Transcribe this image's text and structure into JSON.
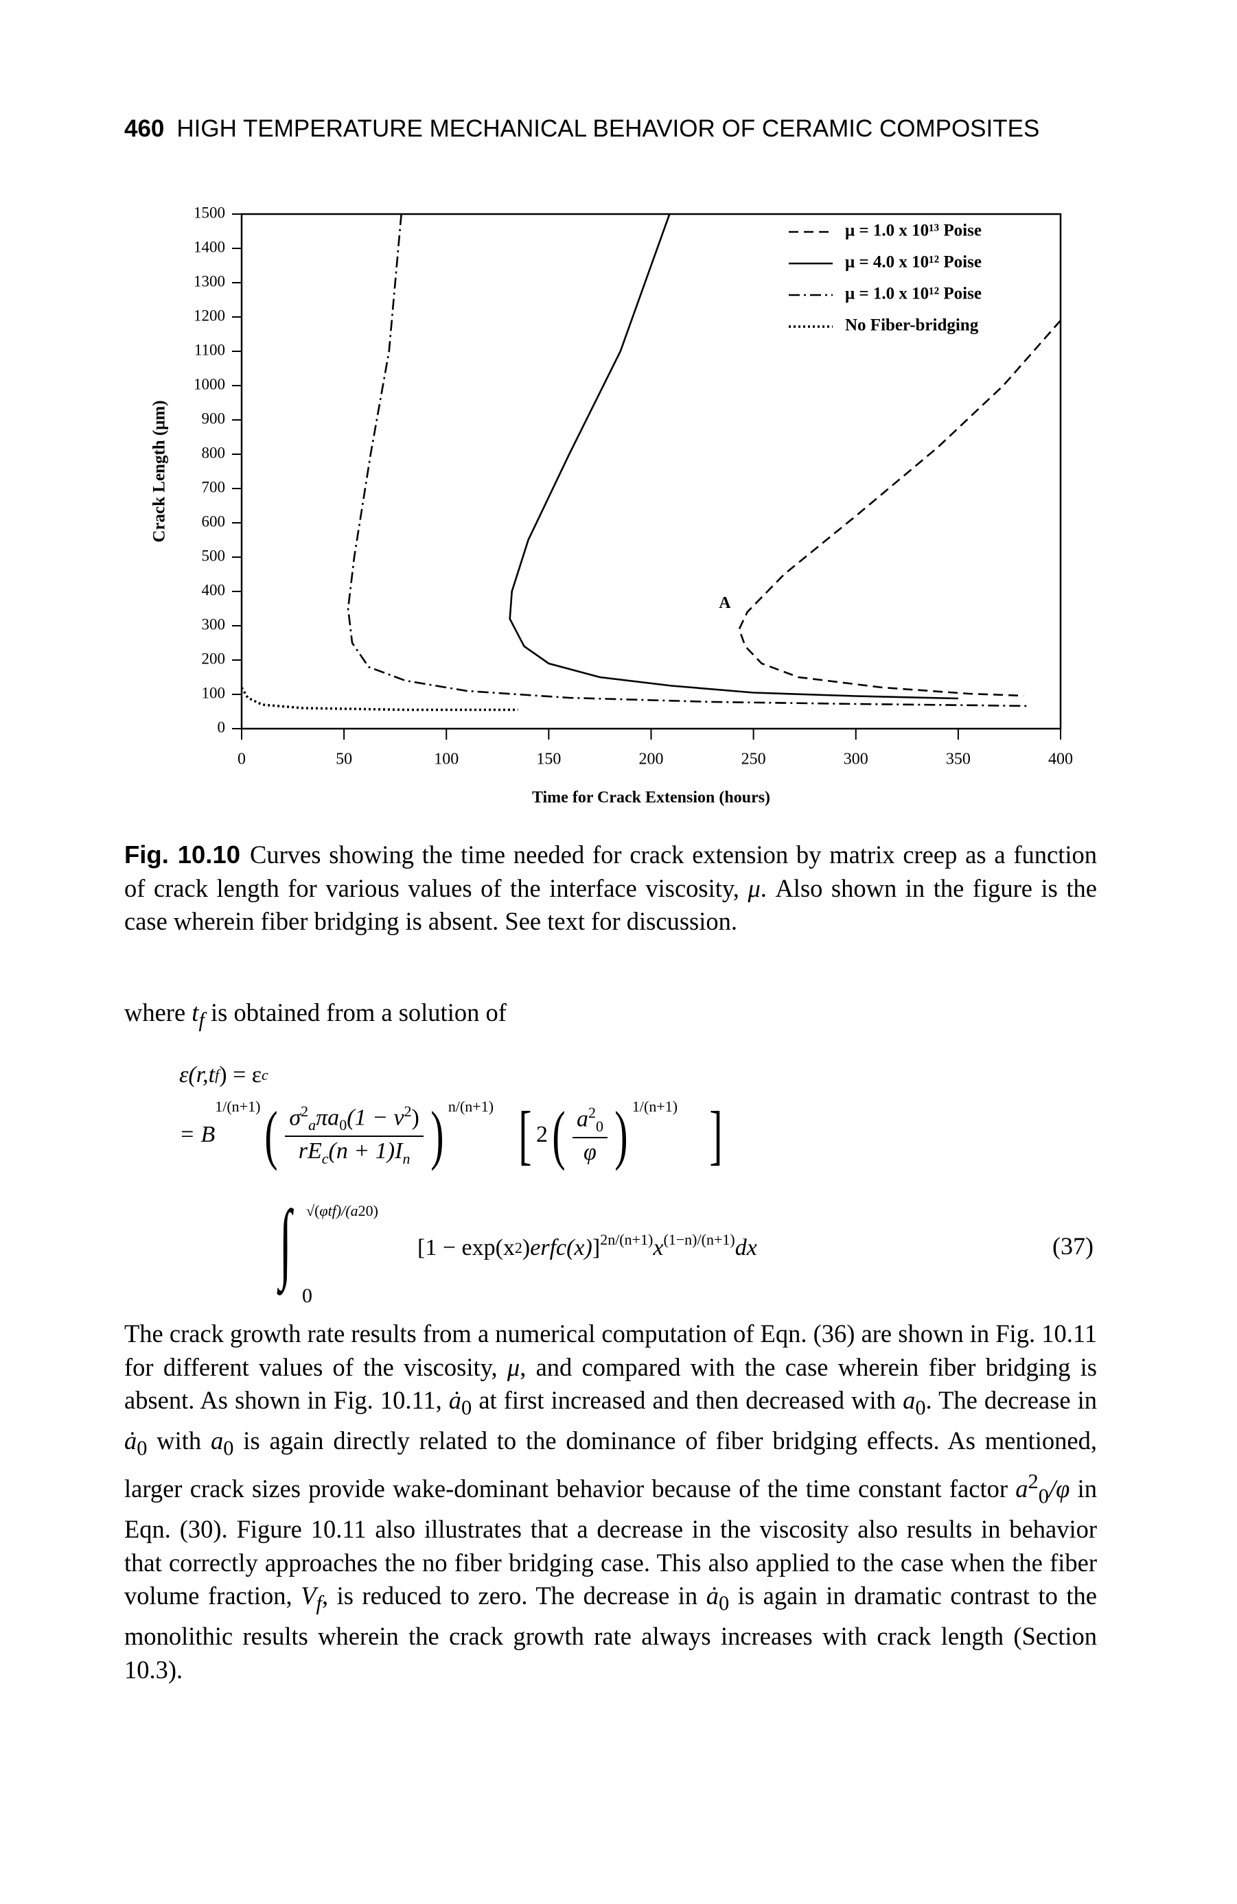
{
  "header": {
    "page": "460",
    "title": "HIGH TEMPERATURE MECHANICAL BEHAVIOR OF CERAMIC COMPOSITES"
  },
  "chart_data": {
    "type": "line",
    "xlabel": "Time for Crack Extension (hours)",
    "ylabel": "Crack Length (μm)",
    "xlim": [
      0,
      400
    ],
    "ylim": [
      0,
      1500
    ],
    "xticks": [
      0,
      50,
      100,
      150,
      200,
      250,
      300,
      350,
      400
    ],
    "yticks": [
      0,
      100,
      200,
      300,
      400,
      500,
      600,
      700,
      800,
      900,
      1000,
      1100,
      1200,
      1300,
      1400,
      1500
    ],
    "legend": "upper right",
    "series": [
      {
        "name": "μ = 1.0 x 10¹³ Poise",
        "color": "#000000",
        "style": "dashed",
        "x": [
          400,
          372,
          340,
          300,
          265,
          247,
          243,
          246,
          254,
          272,
          313,
          355,
          382
        ],
        "values": [
          1190,
          1000,
          820,
          620,
          450,
          340,
          290,
          240,
          190,
          150,
          120,
          102,
          96
        ]
      },
      {
        "name": "μ = 4.0 x 10¹² Poise",
        "color": "#000000",
        "style": "solid",
        "x": [
          209,
          185,
          160,
          140,
          132,
          131,
          138,
          150,
          175,
          210,
          250,
          300,
          350
        ],
        "values": [
          1500,
          1100,
          800,
          550,
          400,
          320,
          240,
          190,
          150,
          125,
          105,
          95,
          88
        ]
      },
      {
        "name": "μ = 1.0 x 10¹² Poise",
        "color": "#000000",
        "style": "dashdot",
        "x": [
          78,
          72,
          63,
          55,
          52,
          54,
          62,
          80,
          110,
          160,
          230,
          300,
          360,
          384
        ],
        "values": [
          1500,
          1100,
          800,
          500,
          350,
          250,
          180,
          140,
          110,
          90,
          78,
          72,
          68,
          66
        ]
      },
      {
        "name": "No Fiber-bridging",
        "color": "#000000",
        "style": "dotted",
        "x": [
          0,
          3,
          10,
          30,
          80,
          135
        ],
        "values": [
          120,
          90,
          70,
          60,
          55,
          55
        ]
      }
    ],
    "annotations": [
      {
        "text": "A",
        "x": 236,
        "y": 363
      }
    ]
  },
  "caption": {
    "label": "Fig. 10.10",
    "text": [
      "Curves showing the time needed for crack extension by matrix creep as a function of crack length for various values of the interface viscosity, ",
      "μ",
      ". Also shown in the figure is the case wherein fiber bridging is absent. See text for discussion."
    ]
  },
  "intro": [
    "where ",
    "t",
    "f",
    " is obtained from a solution of"
  ],
  "equation": {
    "line1": [
      "ε(r,t",
      "f",
      ") = ε",
      "c"
    ],
    "line2": {
      "b": [
        "= B",
        "1/(n+1)"
      ],
      "num1": [
        "σ",
        "2",
        "a",
        "πa",
        "0",
        "(1 − ν",
        "2",
        ")"
      ],
      "den1": [
        "rE",
        "c",
        "(n + 1)I",
        "n"
      ],
      "exp2": "n/(n+1)",
      "two": "2",
      "num2": [
        "a",
        "2",
        "0"
      ],
      "den2": "φ",
      "exp3": "1/(n+1)"
    },
    "line3": {
      "upper": [
        "√(",
        "φt",
        "f",
        ")/(a",
        "2",
        "0",
        ")"
      ],
      "lower": "0",
      "body": [
        "[1 − exp(x",
        "2",
        ") ",
        "erfc(x)",
        "]",
        "2n/(n+1)",
        "x",
        "(1−n)/(n+1)",
        "dx"
      ]
    },
    "number": "(37)"
  },
  "paragraph": [
    "The crack growth rate results from a numerical computation of Eqn. (36) are shown in Fig. 10.11 for different values of the viscosity, ",
    "μ",
    ", and compared with the case wherein fiber bridging is absent. As shown in Fig. 10.11, ",
    "ȧ",
    "0",
    " at first increased and then decreased with ",
    "a",
    "0",
    ". The decrease in ",
    "ȧ",
    "0",
    " with ",
    "a",
    "0",
    " is again directly related to the dominance of fiber bridging effects. As mentioned, larger crack sizes provide wake-dominant behavior because of the time constant factor ",
    "a",
    "2",
    "0",
    "/φ",
    " in Eqn. (30). Figure 10.11 also illustrates that a decrease in the viscosity also results in behavior that correctly approaches the no fiber bridging case. This also applied to the case when the fiber volume fraction, ",
    "V",
    "f",
    ", is reduced to zero. The decrease in ",
    "ȧ",
    "0",
    " is again in dramatic contrast to the monolithic results wherein the crack growth rate always increases with crack length (Section 10.3)."
  ]
}
